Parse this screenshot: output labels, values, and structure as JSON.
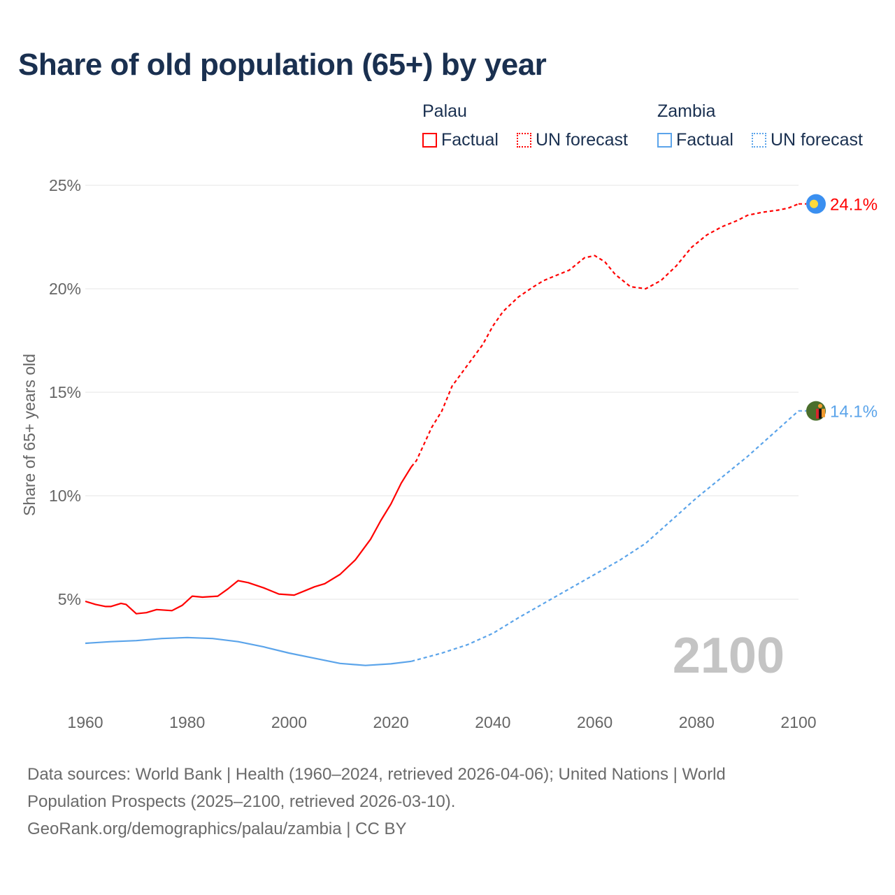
{
  "chart_data": {
    "type": "line",
    "title": "Share of old population (65+) by year",
    "ylabel": "Share of 65+ years old",
    "xlabel": "",
    "xlim": [
      1960,
      2100
    ],
    "ylim": [
      0,
      25
    ],
    "x_ticks": [
      "1960",
      "1980",
      "2000",
      "2020",
      "2040",
      "2060",
      "2080",
      "2100"
    ],
    "y_ticks": [
      {
        "v": 5,
        "label": "5%"
      },
      {
        "v": 10,
        "label": "10%"
      },
      {
        "v": 15,
        "label": "15%"
      },
      {
        "v": 20,
        "label": "20%"
      },
      {
        "v": 25,
        "label": "25%"
      }
    ],
    "grid": true,
    "year_label": "2100",
    "legend": {
      "placement": "top-right",
      "groups": [
        {
          "name": "Palau",
          "items": [
            "Factual",
            "UN forecast"
          ]
        },
        {
          "name": "Zambia",
          "items": [
            "Factual",
            "UN forecast"
          ]
        }
      ]
    },
    "series": [
      {
        "name": "Palau",
        "color": "#ff0000",
        "end_label": "24.1%",
        "factual": [
          [
            1960,
            4.9
          ],
          [
            1962,
            4.75
          ],
          [
            1964,
            4.65
          ],
          [
            1965,
            4.65
          ],
          [
            1967,
            4.8
          ],
          [
            1968,
            4.75
          ],
          [
            1970,
            4.3
          ],
          [
            1972,
            4.35
          ],
          [
            1974,
            4.5
          ],
          [
            1977,
            4.45
          ],
          [
            1979,
            4.7
          ],
          [
            1981,
            5.15
          ],
          [
            1983,
            5.1
          ],
          [
            1986,
            5.15
          ],
          [
            1988,
            5.5
          ],
          [
            1990,
            5.9
          ],
          [
            1992,
            5.8
          ],
          [
            1995,
            5.55
          ],
          [
            1998,
            5.25
          ],
          [
            2001,
            5.2
          ],
          [
            2003,
            5.4
          ],
          [
            2005,
            5.6
          ],
          [
            2007,
            5.75
          ],
          [
            2010,
            6.2
          ],
          [
            2013,
            6.9
          ],
          [
            2016,
            7.9
          ],
          [
            2018,
            8.8
          ],
          [
            2020,
            9.6
          ],
          [
            2022,
            10.6
          ],
          [
            2024,
            11.4
          ]
        ],
        "forecast": [
          [
            2024,
            11.4
          ],
          [
            2025,
            11.7
          ],
          [
            2028,
            13.3
          ],
          [
            2030,
            14.1
          ],
          [
            2032,
            15.3
          ],
          [
            2035,
            16.3
          ],
          [
            2038,
            17.3
          ],
          [
            2040,
            18.2
          ],
          [
            2042,
            18.9
          ],
          [
            2045,
            19.6
          ],
          [
            2048,
            20.1
          ],
          [
            2050,
            20.4
          ],
          [
            2052,
            20.6
          ],
          [
            2055,
            20.9
          ],
          [
            2058,
            21.5
          ],
          [
            2060,
            21.6
          ],
          [
            2062,
            21.3
          ],
          [
            2064,
            20.7
          ],
          [
            2067,
            20.1
          ],
          [
            2070,
            20.0
          ],
          [
            2073,
            20.4
          ],
          [
            2076,
            21.1
          ],
          [
            2079,
            22.0
          ],
          [
            2082,
            22.6
          ],
          [
            2085,
            23.0
          ],
          [
            2088,
            23.3
          ],
          [
            2090,
            23.55
          ],
          [
            2093,
            23.7
          ],
          [
            2096,
            23.8
          ],
          [
            2098,
            23.9
          ],
          [
            2100,
            24.1
          ]
        ]
      },
      {
        "name": "Zambia",
        "color": "#5ba4ea",
        "end_label": "14.1%",
        "factual": [
          [
            1960,
            2.87
          ],
          [
            1965,
            2.95
          ],
          [
            1970,
            3.0
          ],
          [
            1975,
            3.1
          ],
          [
            1980,
            3.15
          ],
          [
            1985,
            3.1
          ],
          [
            1990,
            2.95
          ],
          [
            1995,
            2.7
          ],
          [
            2000,
            2.4
          ],
          [
            2005,
            2.15
          ],
          [
            2010,
            1.9
          ],
          [
            2015,
            1.8
          ],
          [
            2020,
            1.88
          ],
          [
            2024,
            2.0
          ]
        ],
        "forecast": [
          [
            2024,
            2.0
          ],
          [
            2030,
            2.4
          ],
          [
            2035,
            2.8
          ],
          [
            2040,
            3.35
          ],
          [
            2045,
            4.1
          ],
          [
            2050,
            4.8
          ],
          [
            2055,
            5.5
          ],
          [
            2060,
            6.2
          ],
          [
            2065,
            6.9
          ],
          [
            2070,
            7.7
          ],
          [
            2075,
            8.8
          ],
          [
            2080,
            9.9
          ],
          [
            2085,
            10.9
          ],
          [
            2090,
            11.9
          ],
          [
            2095,
            13.0
          ],
          [
            2100,
            14.1
          ]
        ]
      }
    ]
  },
  "footer": {
    "line1": "Data sources: World Bank | Health (1960–2024, retrieved 2026-04-06); United Nations | World",
    "line2": "Population Prospects (2025–2100, retrieved 2026-03-10).",
    "line3": "GeoRank.org/demographics/palau/zambia | CC BY"
  }
}
